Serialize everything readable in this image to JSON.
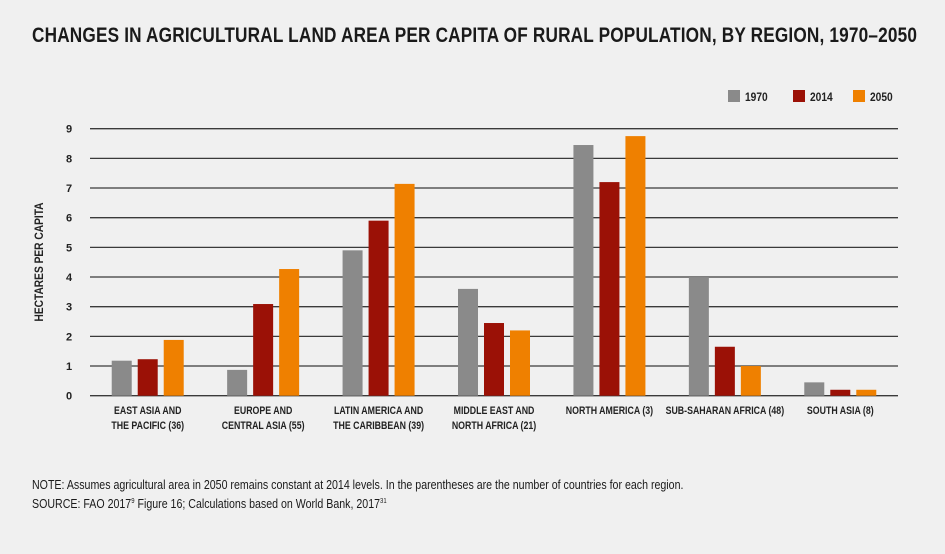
{
  "chart_data": {
    "type": "bar",
    "title": "CHANGES IN AGRICULTURAL LAND AREA PER CAPITA OF RURAL POPULATION, BY REGION, 1970–2050",
    "xlabel": "",
    "ylabel": "HECTARES PER CAPITA",
    "ylim": [
      0,
      9
    ],
    "yticks": [
      "0",
      "1",
      "2",
      "3",
      "4",
      "5",
      "6",
      "7",
      "8",
      "9"
    ],
    "grid": true,
    "legend_position": "top-right",
    "categories": [
      [
        "EAST ASIA AND",
        "THE PACIFIC (36)"
      ],
      [
        "EUROPE AND",
        "CENTRAL ASIA (55)"
      ],
      [
        "LATIN AMERICA AND",
        "THE CARIBBEAN (39)"
      ],
      [
        "MIDDLE EAST AND",
        "NORTH AFRICA (21)"
      ],
      [
        "NORTH AMERICA (3)"
      ],
      [
        "SUB-SAHARAN AFRICA (48)"
      ],
      [
        "SOUTH ASIA (8)"
      ]
    ],
    "series": [
      {
        "name": "1970",
        "color": "#8a8a8a",
        "values": [
          1.18,
          0.87,
          4.9,
          3.6,
          8.45,
          4.0,
          0.45
        ]
      },
      {
        "name": "2014",
        "color": "#9b1106",
        "values": [
          1.23,
          3.09,
          5.9,
          2.45,
          7.2,
          1.65,
          0.2
        ]
      },
      {
        "name": "2050",
        "color": "#ef8000",
        "values": [
          1.88,
          4.27,
          7.14,
          2.2,
          8.75,
          1.0,
          0.2
        ]
      }
    ]
  },
  "notes": {
    "note": "NOTE: Assumes agricultural area in 2050 remains constant at 2014 levels. In the parentheses are the number of countries for each region.",
    "source_prefix": "SOURCE: FAO 2017",
    "source_sup1": "9",
    "source_mid": " Figure 16; Calculations based on World Bank, 2017",
    "source_sup2": "31"
  }
}
